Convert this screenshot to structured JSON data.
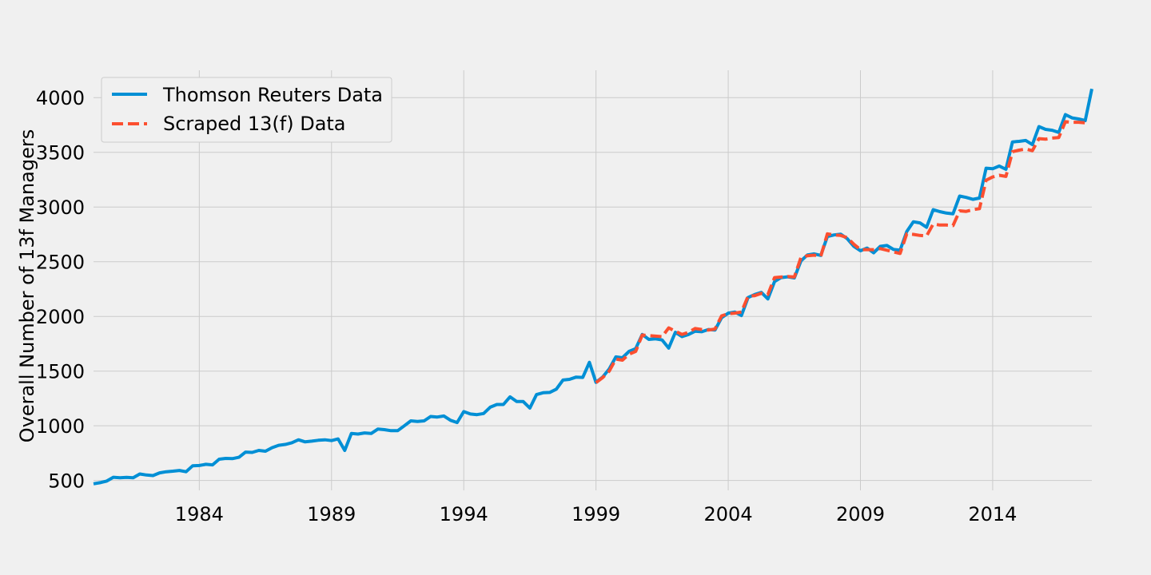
{
  "chart_data": {
    "type": "line",
    "title": "",
    "xlabel": "",
    "ylabel": "Overall Number of 13f Managers",
    "xlim": [
      1980.0,
      2017.75
    ],
    "ylim": [
      410,
      4250
    ],
    "x_ticks": [
      1984,
      1989,
      1994,
      1999,
      2004,
      2009,
      2014
    ],
    "y_ticks": [
      500,
      1000,
      1500,
      2000,
      2500,
      3000,
      3500,
      4000
    ],
    "grid": true,
    "legend_position": "top-left",
    "colors": {
      "background": "#f0f0f0",
      "grid": "#cbcbcb",
      "thomson": "#008fd5",
      "scraped": "#fc4f30"
    },
    "series": [
      {
        "name": "Thomson Reuters Data",
        "style": "solid",
        "x": [
          1980.0,
          1980.25,
          1980.5,
          1980.75,
          1981.0,
          1981.25,
          1981.5,
          1981.75,
          1982.0,
          1982.25,
          1982.5,
          1982.75,
          1983.0,
          1983.25,
          1983.5,
          1983.75,
          1984.0,
          1984.25,
          1984.5,
          1984.75,
          1985.0,
          1985.25,
          1985.5,
          1985.75,
          1986.0,
          1986.25,
          1986.5,
          1986.75,
          1987.0,
          1987.25,
          1987.5,
          1987.75,
          1988.0,
          1988.25,
          1988.5,
          1988.75,
          1989.0,
          1989.25,
          1989.5,
          1989.75,
          1990.0,
          1990.25,
          1990.5,
          1990.75,
          1991.0,
          1991.25,
          1991.5,
          1991.75,
          1992.0,
          1992.25,
          1992.5,
          1992.75,
          1993.0,
          1993.25,
          1993.5,
          1993.75,
          1994.0,
          1994.25,
          1994.5,
          1994.75,
          1995.0,
          1995.25,
          1995.5,
          1995.75,
          1996.0,
          1996.25,
          1996.5,
          1996.75,
          1997.0,
          1997.25,
          1997.5,
          1997.75,
          1998.0,
          1998.25,
          1998.5,
          1998.75,
          1999.0,
          1999.25,
          1999.5,
          1999.75,
          2000.0,
          2000.25,
          2000.5,
          2000.75,
          2001.0,
          2001.25,
          2001.5,
          2001.75,
          2002.0,
          2002.25,
          2002.5,
          2002.75,
          2003.0,
          2003.25,
          2003.5,
          2003.75,
          2004.0,
          2004.25,
          2004.5,
          2004.75,
          2005.0,
          2005.25,
          2005.5,
          2005.75,
          2006.0,
          2006.25,
          2006.5,
          2006.75,
          2007.0,
          2007.25,
          2007.5,
          2007.75,
          2008.0,
          2008.25,
          2008.5,
          2008.75,
          2009.0,
          2009.25,
          2009.5,
          2009.75,
          2010.0,
          2010.25,
          2010.5,
          2010.75,
          2011.0,
          2011.25,
          2011.5,
          2011.75,
          2012.0,
          2012.25,
          2012.5,
          2012.75,
          2013.0,
          2013.25,
          2013.5,
          2013.75,
          2014.0,
          2014.25,
          2014.5,
          2014.75,
          2015.0,
          2015.25,
          2015.5,
          2015.75,
          2016.0,
          2016.25,
          2016.5,
          2016.75,
          2017.0,
          2017.25,
          2017.5,
          2017.75
        ],
        "y": [
          470,
          480,
          495,
          530,
          525,
          528,
          525,
          560,
          550,
          545,
          570,
          580,
          585,
          592,
          580,
          635,
          637,
          648,
          643,
          695,
          702,
          700,
          712,
          760,
          757,
          775,
          768,
          800,
          822,
          830,
          845,
          872,
          853,
          860,
          868,
          872,
          865,
          880,
          775,
          930,
          925,
          935,
          930,
          970,
          965,
          955,
          955,
          1000,
          1045,
          1040,
          1045,
          1085,
          1080,
          1090,
          1050,
          1030,
          1130,
          1108,
          1102,
          1112,
          1170,
          1195,
          1195,
          1265,
          1222,
          1222,
          1162,
          1285,
          1302,
          1305,
          1335,
          1418,
          1425,
          1445,
          1442,
          1580,
          1398,
          1445,
          1520,
          1630,
          1622,
          1680,
          1705,
          1835,
          1790,
          1795,
          1785,
          1710,
          1855,
          1815,
          1835,
          1865,
          1860,
          1880,
          1875,
          1988,
          2030,
          2040,
          2008,
          2172,
          2200,
          2220,
          2160,
          2318,
          2355,
          2362,
          2352,
          2508,
          2562,
          2572,
          2558,
          2730,
          2745,
          2752,
          2710,
          2640,
          2600,
          2625,
          2582,
          2640,
          2648,
          2612,
          2605,
          2775,
          2865,
          2855,
          2815,
          2975,
          2958,
          2945,
          2938,
          3100,
          3088,
          3070,
          3082,
          3355,
          3350,
          3375,
          3345,
          3595,
          3600,
          3608,
          3570,
          3735,
          3710,
          3702,
          3682,
          3845,
          3815,
          3805,
          3790,
          4080
        ]
      },
      {
        "name": "Scraped 13(f) Data",
        "style": "dashed",
        "x": [
          1999.0,
          1999.25,
          1999.5,
          1999.75,
          2000.0,
          2000.25,
          2000.5,
          2000.75,
          2001.0,
          2001.25,
          2001.5,
          2001.75,
          2002.0,
          2002.25,
          2002.5,
          2002.75,
          2003.0,
          2003.25,
          2003.5,
          2003.75,
          2004.0,
          2004.25,
          2004.5,
          2004.75,
          2005.0,
          2005.25,
          2005.5,
          2005.75,
          2006.0,
          2006.25,
          2006.5,
          2006.75,
          2007.0,
          2007.25,
          2007.5,
          2007.75,
          2008.0,
          2008.25,
          2008.5,
          2008.75,
          2009.0,
          2009.25,
          2009.5,
          2009.75,
          2010.0,
          2010.25,
          2010.5,
          2010.75,
          2011.0,
          2011.25,
          2011.5,
          2011.75,
          2012.0,
          2012.25,
          2012.5,
          2012.75,
          2013.0,
          2013.25,
          2013.5,
          2013.75,
          2014.0,
          2014.25,
          2014.5,
          2014.75,
          2015.0,
          2015.25,
          2015.5,
          2015.75,
          2016.0,
          2016.25,
          2016.5,
          2016.75,
          2017.0,
          2017.25,
          2017.5
        ],
        "y": [
          1395,
          1440,
          1500,
          1610,
          1600,
          1655,
          1680,
          1830,
          1825,
          1820,
          1815,
          1895,
          1865,
          1835,
          1855,
          1890,
          1880,
          1875,
          1885,
          2005,
          2025,
          2030,
          2040,
          2185,
          2190,
          2210,
          2200,
          2355,
          2360,
          2365,
          2360,
          2540,
          2555,
          2560,
          2550,
          2755,
          2745,
          2740,
          2720,
          2660,
          2610,
          2610,
          2610,
          2620,
          2605,
          2590,
          2575,
          2755,
          2750,
          2740,
          2735,
          2845,
          2835,
          2835,
          2830,
          2965,
          2960,
          2975,
          2985,
          3245,
          3275,
          3290,
          3280,
          3505,
          3520,
          3530,
          3515,
          3625,
          3620,
          3630,
          3635,
          3780,
          3775,
          3775,
          3770
        ]
      }
    ]
  }
}
